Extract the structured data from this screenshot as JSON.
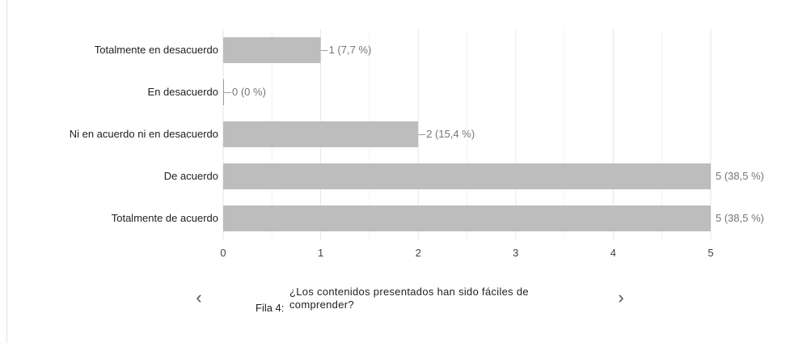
{
  "chart_data": {
    "type": "bar",
    "orientation": "horizontal",
    "categories": [
      "Totalmente en desacuerdo",
      "En desacuerdo",
      "Ni en acuerdo ni en desacuerdo",
      "De acuerdo",
      "Totalmente de acuerdo"
    ],
    "values": [
      1,
      0,
      2,
      5,
      5
    ],
    "data_labels": [
      "1 (7,7 %)",
      "0 (0 %)",
      "2 (15,4 %)",
      "5 (38,5 %)",
      "5 (38,5 %)"
    ],
    "xlim": [
      0,
      5
    ],
    "xticks": [
      "0",
      "1",
      "2",
      "3",
      "4",
      "5"
    ],
    "grid": true,
    "bar_color": "#bdbdbd"
  },
  "footer": {
    "prefix": "Fila 4:",
    "title": "¿Los contenidos presentados han sido fáciles de comprender?",
    "prev_icon": "‹",
    "next_icon": "›"
  }
}
